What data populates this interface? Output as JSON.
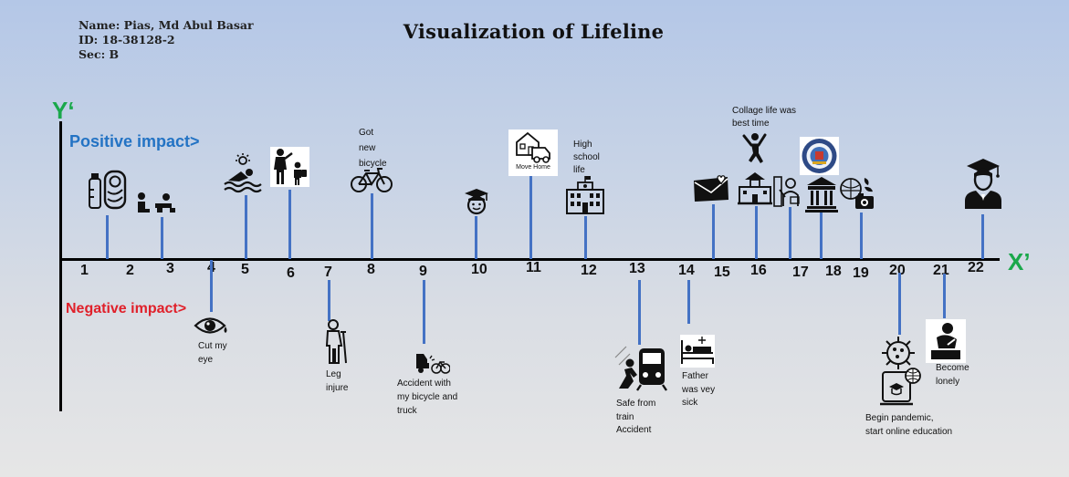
{
  "header": {
    "name": "Name: Pias, Md Abul Basar",
    "id": "ID: 18-38128-2",
    "sec": "Sec: B"
  },
  "title": "Visualization of Lifeline",
  "axes": {
    "y": "Y‘",
    "x": "X’"
  },
  "labels": {
    "positive": "Positive impact>",
    "negative": "Negative impact>"
  },
  "timeline": {
    "ticks": [
      "1",
      "2",
      "3",
      "4",
      "5",
      "6",
      "7",
      "8",
      "9",
      "10",
      "11",
      "12",
      "13",
      "14",
      "15",
      "16",
      "17",
      "18",
      "19",
      "20",
      "21",
      "22"
    ]
  },
  "events": {
    "got_bicycle": [
      "Got",
      "new",
      "bicycle"
    ],
    "move_home": "Move Home",
    "high_school": [
      "High",
      "school",
      "life"
    ],
    "college": [
      "Collage life was",
      "best time"
    ],
    "cut_eye": [
      "Cut my",
      "eye"
    ],
    "leg_injure": [
      "Leg",
      "injure"
    ],
    "accident": [
      "Accident with",
      "my bicycle and",
      "truck"
    ],
    "train": [
      "Safe from",
      "train",
      "Accident"
    ],
    "father": [
      "Father",
      "was vey",
      "sick"
    ],
    "pandemic": [
      "Begin pandemic,",
      "start online education"
    ],
    "lonely": [
      "Become",
      "lonely"
    ]
  },
  "colors": {
    "axis_label": "#1aa84b",
    "positive": "#2373c4",
    "negative": "#e0202a",
    "connector": "#4472c4"
  }
}
